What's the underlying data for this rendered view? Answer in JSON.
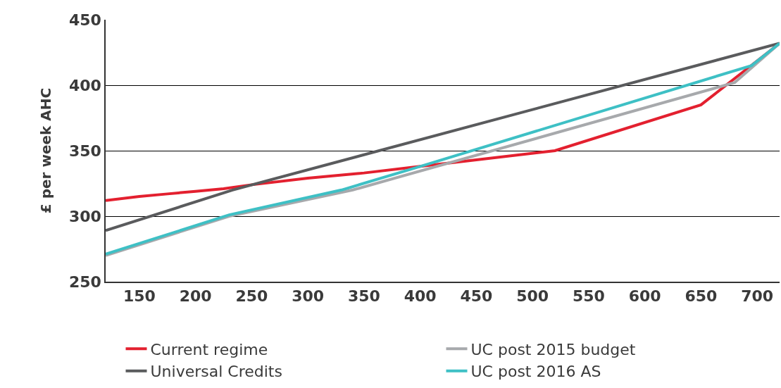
{
  "chart_data": {
    "type": "line",
    "ylabel": "£ per week AHC",
    "xlim": [
      120,
      720
    ],
    "xticks": [
      150,
      200,
      250,
      300,
      350,
      400,
      450,
      500,
      550,
      600,
      650,
      700
    ],
    "ylim": [
      250,
      450
    ],
    "yticks": [
      250,
      300,
      350,
      400,
      450
    ],
    "grid": "y",
    "legend": "bottom",
    "line_style": "solid",
    "series": [
      {
        "name": "Current regime",
        "color": "#e3202f",
        "x": [
          120,
          150,
          175,
          200,
          225,
          250,
          300,
          350,
          400,
          430,
          450,
          520,
          650,
          720
        ],
        "values": [
          312,
          315,
          317,
          319,
          321,
          324,
          329,
          333,
          338,
          341,
          343,
          350,
          385,
          432
        ]
      },
      {
        "name": "UC post 2015 budget",
        "color": "#a7a9ac",
        "x": [
          120,
          230,
          340,
          680,
          720
        ],
        "values": [
          270,
          300,
          320,
          402,
          432
        ]
      },
      {
        "name": "Universal Credits",
        "color": "#5a5b5d",
        "x": [
          120,
          233,
          720
        ],
        "values": [
          289,
          320,
          432
        ]
      },
      {
        "name": "UC post 2016 AS",
        "color": "#3ec0c5",
        "x": [
          120,
          230,
          330,
          400,
          695,
          720
        ],
        "values": [
          271,
          301,
          320,
          338,
          415,
          432
        ]
      }
    ]
  }
}
